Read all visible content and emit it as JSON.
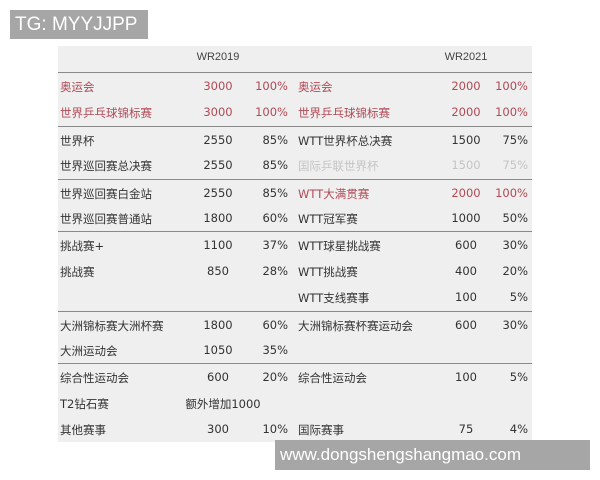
{
  "watermarks": {
    "top": "TG: MYYJJPP",
    "bottom": "www.dongshengshangmao.com"
  },
  "colors": {
    "highlight_red": "#b04a55",
    "faded": "#c4c4c4",
    "table_bg": "#efefef"
  },
  "headers": {
    "left": "WR2019",
    "right": "WR2021"
  },
  "rows": [
    {
      "n1": "奥运会",
      "v1": "3000",
      "p1": "100%",
      "n2": "奥运会",
      "v2": "2000",
      "p2": "100%"
    },
    {
      "n1": "世界乒乓球锦标赛",
      "v1": "3000",
      "p1": "100%",
      "n2": "世界乒乓球锦标赛",
      "v2": "2000",
      "p2": "100%"
    },
    {
      "n1": "世界杯",
      "v1": "2550",
      "p1": "85%",
      "n2": "WTT世界杯总决赛",
      "v2": "1500",
      "p2": "75%"
    },
    {
      "n1": "世界巡回赛总决赛",
      "v1": "2550",
      "p1": "85%",
      "n2": "国际乒联世界杯",
      "v2": "1500",
      "p2": "75%"
    },
    {
      "n1": "世界巡回赛白金站",
      "v1": "2550",
      "p1": "85%",
      "n2": "WTT大满贯赛",
      "v2": "2000",
      "p2": "100%"
    },
    {
      "n1": "世界巡回赛普通站",
      "v1": "1800",
      "p1": "60%",
      "n2": "WTT冠军赛",
      "v2": "1000",
      "p2": "50%"
    },
    {
      "n1": "挑战赛+",
      "v1": "1100",
      "p1": "37%",
      "n2": "WTT球星挑战赛",
      "v2": "600",
      "p2": "30%"
    },
    {
      "n1": "挑战赛",
      "v1": "850",
      "p1": "28%",
      "n2": "WTT挑战赛",
      "v2": "400",
      "p2": "20%"
    },
    {
      "n1": "",
      "v1": "",
      "p1": "",
      "n2": "WTT支线赛事",
      "v2": "100",
      "p2": "5%"
    },
    {
      "n1": "大洲锦标赛大洲杯赛",
      "v1": "1800",
      "p1": "60%",
      "n2": "大洲锦标赛杯赛运动会",
      "v2": "600",
      "p2": "30%"
    },
    {
      "n1": "大洲运动会",
      "v1": "1050",
      "p1": "35%",
      "n2": "",
      "v2": "",
      "p2": ""
    },
    {
      "n1": "综合性运动会",
      "v1": "600",
      "p1": "20%",
      "n2": "综合性运动会",
      "v2": "100",
      "p2": "5%"
    },
    {
      "n1": "T2钻石赛",
      "v1": "额外增加1000",
      "p1": "",
      "n2": "",
      "v2": "",
      "p2": ""
    },
    {
      "n1": "其他赛事",
      "v1": "300",
      "p1": "10%",
      "n2": "国际赛事",
      "v2": "75",
      "p2": "4%"
    }
  ]
}
